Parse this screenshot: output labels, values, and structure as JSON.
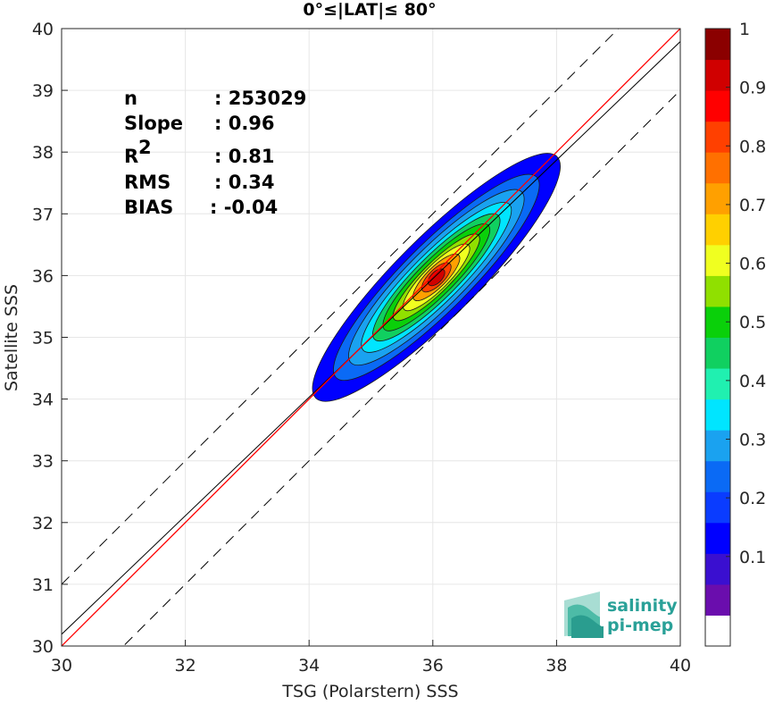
{
  "chart_data": {
    "type": "scatter",
    "title": "0°≤|LAT|≤ 80°",
    "xlabel": "TSG (Polarstern) SSS",
    "ylabel": "Satellite SSS",
    "xlim": [
      30,
      40
    ],
    "ylim": [
      30,
      40
    ],
    "xticks": [
      "30",
      "32",
      "34",
      "36",
      "38",
      "40"
    ],
    "yticks": [
      "30",
      "31",
      "32",
      "33",
      "34",
      "35",
      "36",
      "37",
      "38",
      "39",
      "40"
    ],
    "grid": true,
    "stats": [
      {
        "label": "n",
        "value": ": 253029"
      },
      {
        "label": "Slope",
        "value": ": 0.96"
      },
      {
        "label": "R",
        "superscript": "2",
        "value": ": 0.81"
      },
      {
        "label": "RMS",
        "value": ": 0.34"
      },
      {
        "label": "BIAS",
        "value": ": -0.04"
      }
    ],
    "lines": {
      "identity": {
        "color": "#ff0000",
        "x": [
          30,
          40
        ],
        "y": [
          30,
          40
        ]
      },
      "regression": {
        "color": "#000000",
        "x": [
          30,
          40
        ],
        "y": [
          30.19,
          39.79
        ]
      },
      "dashed_offset": 1.0
    },
    "density_contours": {
      "center": [
        36.0,
        36.0
      ],
      "levels": [
        0.05,
        0.1,
        0.2,
        0.3,
        0.4,
        0.5,
        0.6,
        0.7,
        0.8,
        0.9,
        1.0
      ]
    },
    "colorbar": {
      "ticks": [
        "0.1",
        "0.2",
        "0.3",
        "0.4",
        "0.5",
        "0.6",
        "0.7",
        "0.8",
        "0.9",
        "1"
      ],
      "colors": [
        "#ffffff",
        "#6a0dad",
        "#3a0fd0",
        "#0000ff",
        "#0a3cff",
        "#0a6af5",
        "#1aa2f0",
        "#00e5ff",
        "#20f0b0",
        "#10d060",
        "#0ad00a",
        "#90e000",
        "#f0ff20",
        "#ffd000",
        "#ffa000",
        "#ff7000",
        "#ff4000",
        "#ff0000",
        "#d00000",
        "#8b0000"
      ]
    }
  },
  "logo": {
    "line1": "salinity",
    "line2": "pi-mep"
  }
}
